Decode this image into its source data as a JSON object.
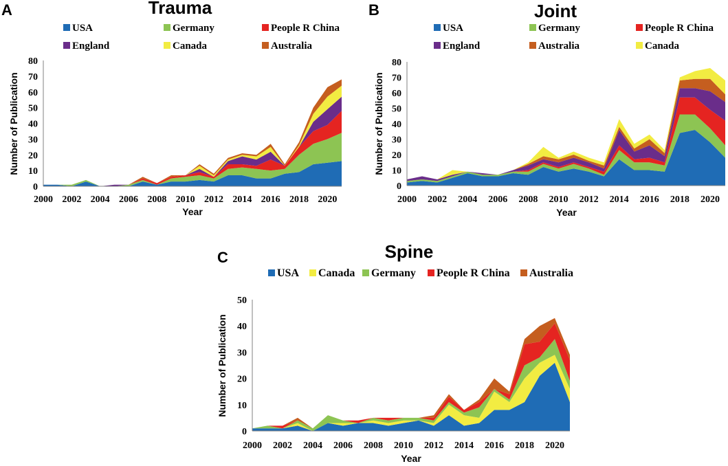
{
  "chart_data": [
    {
      "panel": "A",
      "title": "Trauma",
      "type": "area",
      "stacked": true,
      "xlabel": "Year",
      "ylabel": "Number of Publication",
      "ylim": [
        0,
        80
      ],
      "yticks": [
        0,
        10,
        20,
        30,
        40,
        50,
        60,
        70,
        80
      ],
      "xticks": [
        2000,
        2002,
        2004,
        2006,
        2008,
        2010,
        2012,
        2014,
        2016,
        2018,
        2020
      ],
      "x": [
        2000,
        2001,
        2002,
        2003,
        2004,
        2005,
        2006,
        2007,
        2008,
        2009,
        2010,
        2011,
        2012,
        2013,
        2014,
        2015,
        2016,
        2017,
        2018,
        2019,
        2020,
        2021
      ],
      "series": [
        {
          "name": "USA",
          "color": "#1F6CB5",
          "values": [
            1,
            1,
            0,
            3,
            0,
            0,
            0,
            3,
            1,
            3,
            3,
            4,
            3,
            7,
            7,
            5,
            5,
            8,
            9,
            14,
            15,
            16
          ]
        },
        {
          "name": "Germany",
          "color": "#8DC453",
          "values": [
            0,
            0,
            1,
            1,
            0,
            0,
            1,
            1,
            0,
            2,
            3,
            3,
            2,
            4,
            5,
            6,
            5,
            3,
            11,
            13,
            15,
            18
          ]
        },
        {
          "name": "People R China",
          "color": "#E52421",
          "values": [
            0,
            0,
            0,
            0,
            0,
            0,
            0,
            1,
            1,
            1,
            1,
            2,
            1,
            3,
            2,
            2,
            7,
            2,
            5,
            8,
            9,
            14
          ]
        },
        {
          "name": "England",
          "color": "#6A2D8A",
          "values": [
            0,
            0,
            0,
            0,
            0,
            1,
            0,
            0,
            0,
            0,
            0,
            2,
            0,
            2,
            5,
            4,
            5,
            0,
            0,
            6,
            10,
            9
          ]
        },
        {
          "name": "Canada",
          "color": "#F2EC42",
          "values": [
            0,
            0,
            0,
            0,
            0,
            0,
            0,
            0,
            0,
            0,
            0,
            2,
            1,
            1,
            1,
            2,
            3,
            0,
            1,
            5,
            8,
            7
          ]
        },
        {
          "name": "Australia",
          "color": "#C55E1F",
          "values": [
            0,
            0,
            0,
            0,
            0,
            0,
            0,
            1,
            0,
            1,
            0,
            1,
            1,
            1,
            1,
            1,
            2,
            1,
            2,
            4,
            6,
            4
          ]
        }
      ],
      "legend": [
        [
          "USA",
          "Germany",
          "People R China"
        ],
        [
          "England",
          "Canada",
          "Australia"
        ]
      ]
    },
    {
      "panel": "B",
      "title": "Joint",
      "type": "area",
      "stacked": true,
      "xlabel": "Year",
      "ylabel": "Number of Publication",
      "ylim": [
        0,
        80
      ],
      "yticks": [
        0,
        10,
        20,
        30,
        40,
        50,
        60,
        70,
        80
      ],
      "xticks": [
        2000,
        2002,
        2004,
        2006,
        2008,
        2010,
        2012,
        2014,
        2016,
        2018,
        2020
      ],
      "x": [
        2000,
        2001,
        2002,
        2003,
        2004,
        2005,
        2006,
        2007,
        2008,
        2009,
        2010,
        2011,
        2012,
        2013,
        2014,
        2015,
        2016,
        2017,
        2018,
        2019,
        2020,
        2021
      ],
      "series": [
        {
          "name": "USA",
          "color": "#1F6CB5",
          "values": [
            2,
            3,
            2,
            5,
            8,
            6,
            6,
            8,
            7,
            12,
            9,
            11,
            9,
            6,
            17,
            10,
            10,
            9,
            34,
            36,
            28,
            18
          ]
        },
        {
          "name": "Germany",
          "color": "#8DC453",
          "values": [
            1,
            1,
            1,
            1,
            1,
            1,
            1,
            1,
            2,
            2,
            2,
            3,
            2,
            1,
            6,
            5,
            5,
            4,
            12,
            10,
            9,
            8
          ]
        },
        {
          "name": "People R China",
          "color": "#E52421",
          "values": [
            0,
            0,
            0,
            0,
            0,
            0,
            0,
            0,
            1,
            1,
            1,
            1,
            1,
            2,
            3,
            2,
            3,
            2,
            11,
            11,
            12,
            16
          ]
        },
        {
          "name": "England",
          "color": "#6A2D8A",
          "values": [
            1,
            2,
            1,
            1,
            0,
            1,
            0,
            1,
            3,
            2,
            3,
            3,
            3,
            2,
            10,
            5,
            8,
            4,
            6,
            6,
            12,
            12
          ]
        },
        {
          "name": "Australia",
          "color": "#C55E1F",
          "values": [
            0,
            0,
            0,
            0,
            0,
            0,
            0,
            0,
            1,
            2,
            2,
            2,
            1,
            2,
            2,
            2,
            4,
            2,
            5,
            6,
            8,
            5
          ]
        },
        {
          "name": "Canada",
          "color": "#F2EC42",
          "values": [
            0,
            0,
            0,
            3,
            0,
            0,
            0,
            0,
            1,
            6,
            1,
            2,
            2,
            2,
            5,
            3,
            3,
            2,
            2,
            5,
            7,
            9
          ]
        }
      ],
      "legend": [
        [
          "USA",
          "Germany",
          "People R China"
        ],
        [
          "England",
          "Australia",
          "Canada"
        ]
      ]
    },
    {
      "panel": "C",
      "title": "Spine",
      "type": "area",
      "stacked": true,
      "xlabel": "Year",
      "ylabel": "Number of Publication",
      "ylim": [
        0,
        50
      ],
      "yticks": [
        0,
        10,
        20,
        30,
        40,
        50
      ],
      "xticks": [
        2000,
        2002,
        2004,
        2006,
        2008,
        2010,
        2012,
        2014,
        2016,
        2018,
        2020
      ],
      "x": [
        2000,
        2001,
        2002,
        2003,
        2004,
        2005,
        2006,
        2007,
        2008,
        2009,
        2010,
        2011,
        2012,
        2013,
        2014,
        2015,
        2016,
        2017,
        2018,
        2019,
        2020,
        2021
      ],
      "series": [
        {
          "name": "USA",
          "color": "#1F6CB5",
          "values": [
            1,
            1,
            1,
            2,
            0,
            3,
            2,
            3,
            3,
            2,
            3,
            4,
            2,
            6,
            2,
            3,
            8,
            8,
            11,
            21,
            26,
            11
          ]
        },
        {
          "name": "Canada",
          "color": "#F2EC42",
          "values": [
            0,
            0,
            0,
            1,
            0,
            0,
            1,
            0,
            1,
            1,
            1,
            0,
            1,
            4,
            4,
            2,
            7,
            3,
            9,
            5,
            3,
            5
          ]
        },
        {
          "name": "Germany",
          "color": "#8DC453",
          "values": [
            0,
            1,
            0,
            1,
            1,
            3,
            1,
            0,
            1,
            1,
            1,
            1,
            1,
            1,
            1,
            4,
            1,
            1,
            5,
            2,
            6,
            3
          ]
        },
        {
          "name": "People R China",
          "color": "#E52421",
          "values": [
            0,
            0,
            1,
            0,
            0,
            0,
            0,
            1,
            0,
            1,
            0,
            0,
            1,
            2,
            1,
            2,
            0,
            2,
            8,
            6,
            6,
            8
          ]
        },
        {
          "name": "Australia",
          "color": "#C55E1F",
          "values": [
            0,
            0,
            0,
            1,
            0,
            0,
            0,
            0,
            0,
            0,
            0,
            0,
            1,
            1,
            0,
            1,
            4,
            1,
            2,
            6,
            2,
            2
          ]
        }
      ],
      "legend": [
        [
          "USA",
          "Canada",
          "Germany",
          "People R China",
          "Australia"
        ]
      ]
    }
  ]
}
